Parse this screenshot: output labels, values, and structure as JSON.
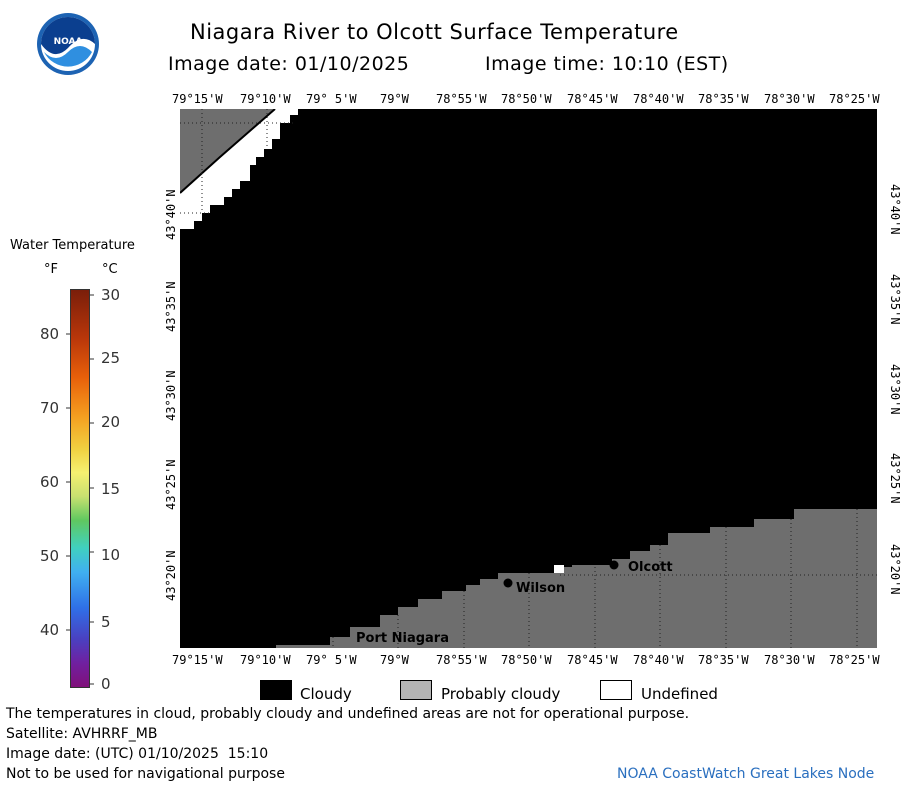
{
  "header": {
    "title": "Niagara River to Olcott Surface Temperature",
    "image_date_label": "Image date: 01/10/2025",
    "image_time_label": "Image time: 10:10 (EST)"
  },
  "logo": {
    "text": "NOAA"
  },
  "map": {
    "top_lon_ticks": [
      "79°15'W",
      "79°10'W",
      "79° 5'W",
      "79°W",
      "78°55'W",
      "78°50'W",
      "78°45'W",
      "78°40'W",
      "78°35'W",
      "78°30'W",
      "78°25'W"
    ],
    "bottom_lon_ticks": [
      "79°15'W",
      "79°10'W",
      "79° 5'W",
      "79°W",
      "78°55'W",
      "78°50'W",
      "78°45'W",
      "78°40'W",
      "78°35'W",
      "78°30'W",
      "78°25'W"
    ],
    "lat_ticks": [
      "43°40'N",
      "43°35'N",
      "43°30'N",
      "43°25'N",
      "43°20'N"
    ],
    "places": [
      {
        "name": "Olcott"
      },
      {
        "name": "Wilson"
      },
      {
        "name": "Port Niagara"
      }
    ]
  },
  "legend": {
    "title": "Water Temperature",
    "unit_f": "°F",
    "unit_c": "°C",
    "f_labels": [
      "80",
      "70",
      "60",
      "50",
      "40"
    ],
    "c_labels": [
      "30",
      "25",
      "20",
      "15",
      "10",
      "5",
      "0"
    ]
  },
  "key": {
    "cloudy": "Cloudy",
    "probably_cloudy": "Probably cloudy",
    "undefined": "Undefined"
  },
  "footer": {
    "disclaimer": "The temperatures in cloud, probably cloudy and undefined areas are not for operational purpose.",
    "satellite": "Satellite: AVHRRF_MB",
    "utc_date": "Image date: (UTC) 01/10/2025  15:10",
    "nav_warning": "Not to be used for navigational purpose",
    "credit": "NOAA CoastWatch Great Lakes Node"
  },
  "colors": {
    "cloudy": "#000000",
    "probably_cloudy": "#6e6e6e",
    "credit_link": "#2a6fbf"
  }
}
